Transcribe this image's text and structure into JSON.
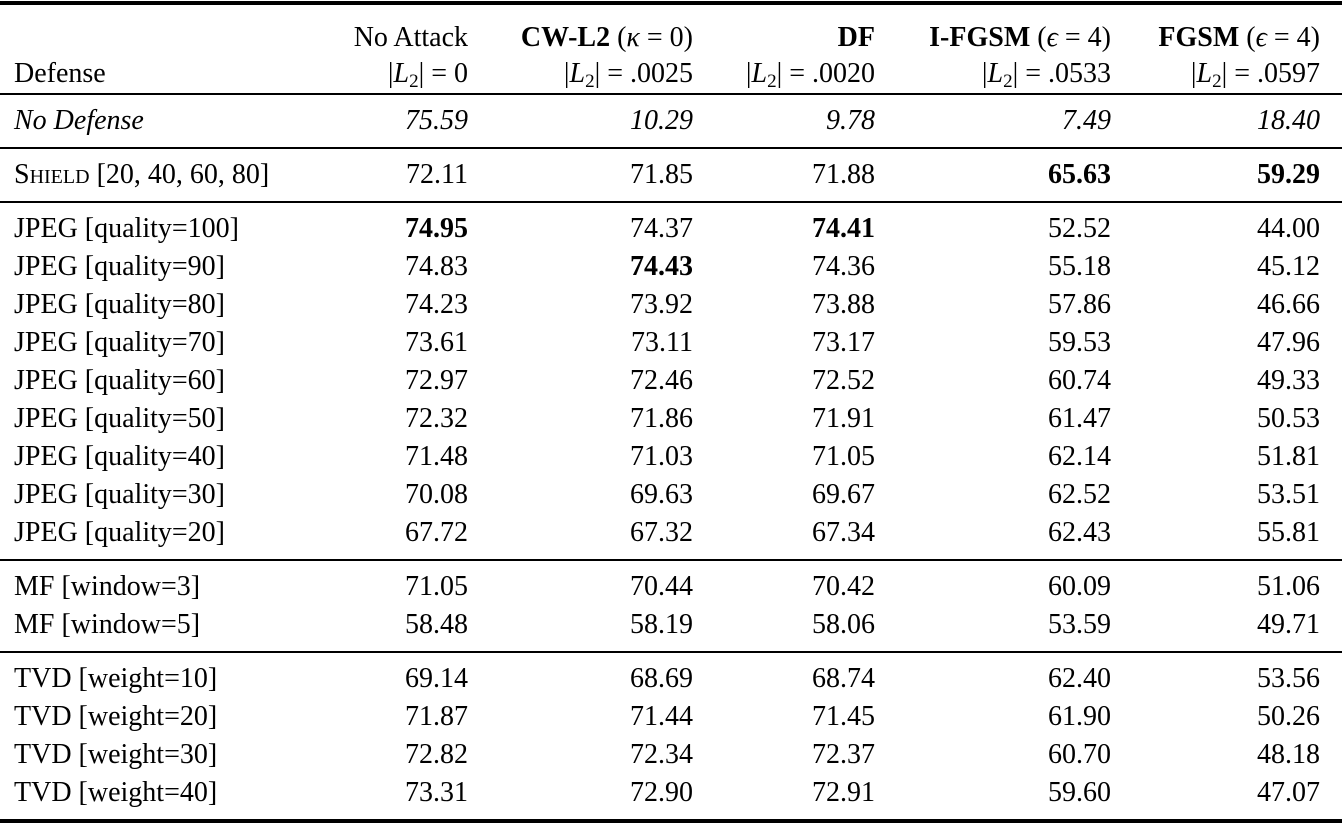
{
  "page": {
    "background": "#ffffff",
    "text_color": "#000000"
  },
  "table": {
    "corner_label": "Defense",
    "l2_letter": "L",
    "l2_subscript": "2",
    "columns": [
      {
        "attack": "No Attack",
        "bold": false,
        "param": null,
        "l2_value": "0"
      },
      {
        "attack": "CW-L2",
        "bold": true,
        "param": {
          "symbol": "κ",
          "value": "0"
        },
        "l2_value": ".0025"
      },
      {
        "attack": "DF",
        "bold": true,
        "param": null,
        "l2_value": ".0020"
      },
      {
        "attack": "I-FGSM",
        "bold": true,
        "param": {
          "symbol": "ϵ",
          "value": "4"
        },
        "l2_value": ".0533"
      },
      {
        "attack": "FGSM",
        "bold": true,
        "param": {
          "symbol": "ϵ",
          "value": "4"
        },
        "l2_value": ".0597"
      }
    ],
    "groups": [
      {
        "name": "no-defense",
        "rows": [
          {
            "label": {
              "text": "No Defense",
              "param": ""
            },
            "italic": true,
            "smallcaps": false,
            "values": [
              "75.59",
              "10.29",
              "9.78",
              "7.49",
              "18.40"
            ],
            "bold_cols": []
          }
        ]
      },
      {
        "name": "shield",
        "rows": [
          {
            "label": {
              "text": "Shield",
              "param": "[20, 40, 60, 80]"
            },
            "italic": false,
            "smallcaps": true,
            "values": [
              "72.11",
              "71.85",
              "71.88",
              "65.63",
              "59.29"
            ],
            "bold_cols": [
              3,
              4
            ]
          }
        ]
      },
      {
        "name": "jpeg",
        "rows": [
          {
            "label": {
              "text": "JPEG",
              "param": "[quality=100]"
            },
            "italic": false,
            "smallcaps": false,
            "values": [
              "74.95",
              "74.37",
              "74.41",
              "52.52",
              "44.00"
            ],
            "bold_cols": [
              0,
              2
            ]
          },
          {
            "label": {
              "text": "JPEG",
              "param": "[quality=90]"
            },
            "italic": false,
            "smallcaps": false,
            "values": [
              "74.83",
              "74.43",
              "74.36",
              "55.18",
              "45.12"
            ],
            "bold_cols": [
              1
            ]
          },
          {
            "label": {
              "text": "JPEG",
              "param": "[quality=80]"
            },
            "italic": false,
            "smallcaps": false,
            "values": [
              "74.23",
              "73.92",
              "73.88",
              "57.86",
              "46.66"
            ],
            "bold_cols": []
          },
          {
            "label": {
              "text": "JPEG",
              "param": "[quality=70]"
            },
            "italic": false,
            "smallcaps": false,
            "values": [
              "73.61",
              "73.11",
              "73.17",
              "59.53",
              "47.96"
            ],
            "bold_cols": []
          },
          {
            "label": {
              "text": "JPEG",
              "param": "[quality=60]"
            },
            "italic": false,
            "smallcaps": false,
            "values": [
              "72.97",
              "72.46",
              "72.52",
              "60.74",
              "49.33"
            ],
            "bold_cols": []
          },
          {
            "label": {
              "text": "JPEG",
              "param": "[quality=50]"
            },
            "italic": false,
            "smallcaps": false,
            "values": [
              "72.32",
              "71.86",
              "71.91",
              "61.47",
              "50.53"
            ],
            "bold_cols": []
          },
          {
            "label": {
              "text": "JPEG",
              "param": "[quality=40]"
            },
            "italic": false,
            "smallcaps": false,
            "values": [
              "71.48",
              "71.03",
              "71.05",
              "62.14",
              "51.81"
            ],
            "bold_cols": []
          },
          {
            "label": {
              "text": "JPEG",
              "param": "[quality=30]"
            },
            "italic": false,
            "smallcaps": false,
            "values": [
              "70.08",
              "69.63",
              "69.67",
              "62.52",
              "53.51"
            ],
            "bold_cols": []
          },
          {
            "label": {
              "text": "JPEG",
              "param": "[quality=20]"
            },
            "italic": false,
            "smallcaps": false,
            "values": [
              "67.72",
              "67.32",
              "67.34",
              "62.43",
              "55.81"
            ],
            "bold_cols": []
          }
        ]
      },
      {
        "name": "mf",
        "rows": [
          {
            "label": {
              "text": "MF",
              "param": "[window=3]"
            },
            "italic": false,
            "smallcaps": false,
            "values": [
              "71.05",
              "70.44",
              "70.42",
              "60.09",
              "51.06"
            ],
            "bold_cols": []
          },
          {
            "label": {
              "text": "MF",
              "param": "[window=5]"
            },
            "italic": false,
            "smallcaps": false,
            "values": [
              "58.48",
              "58.19",
              "58.06",
              "53.59",
              "49.71"
            ],
            "bold_cols": []
          }
        ]
      },
      {
        "name": "tvd",
        "rows": [
          {
            "label": {
              "text": "TVD",
              "param": "[weight=10]"
            },
            "italic": false,
            "smallcaps": false,
            "values": [
              "69.14",
              "68.69",
              "68.74",
              "62.40",
              "53.56"
            ],
            "bold_cols": []
          },
          {
            "label": {
              "text": "TVD",
              "param": "[weight=20]"
            },
            "italic": false,
            "smallcaps": false,
            "values": [
              "71.87",
              "71.44",
              "71.45",
              "61.90",
              "50.26"
            ],
            "bold_cols": []
          },
          {
            "label": {
              "text": "TVD",
              "param": "[weight=30]"
            },
            "italic": false,
            "smallcaps": false,
            "values": [
              "72.82",
              "72.34",
              "72.37",
              "60.70",
              "48.18"
            ],
            "bold_cols": []
          },
          {
            "label": {
              "text": "TVD",
              "param": "[weight=40]"
            },
            "italic": false,
            "smallcaps": false,
            "values": [
              "73.31",
              "72.90",
              "72.91",
              "59.60",
              "47.07"
            ],
            "bold_cols": []
          }
        ]
      }
    ]
  }
}
